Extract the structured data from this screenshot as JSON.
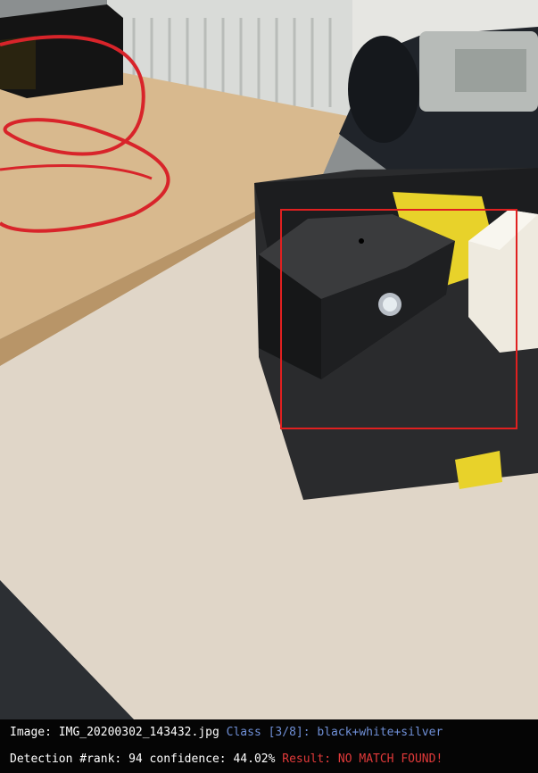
{
  "detection": {
    "box_color": "#e02020"
  },
  "info_bar": {
    "image_label": "Image: ",
    "image_name": "IMG_20200302_143432.jpg",
    "class_label": "Class [3/8]: ",
    "class_value": "black+white+silver",
    "detection_label": "Detection #rank: ",
    "rank": "94",
    "confidence_label": " confidence: ",
    "confidence": "44.02%",
    "result_label": "Result: ",
    "result_value": "NO MATCH FOUND!",
    "colors": {
      "text": "#ffffff",
      "class": "#6f8fd6",
      "result": "#e23a3a",
      "background": "#050505"
    }
  }
}
